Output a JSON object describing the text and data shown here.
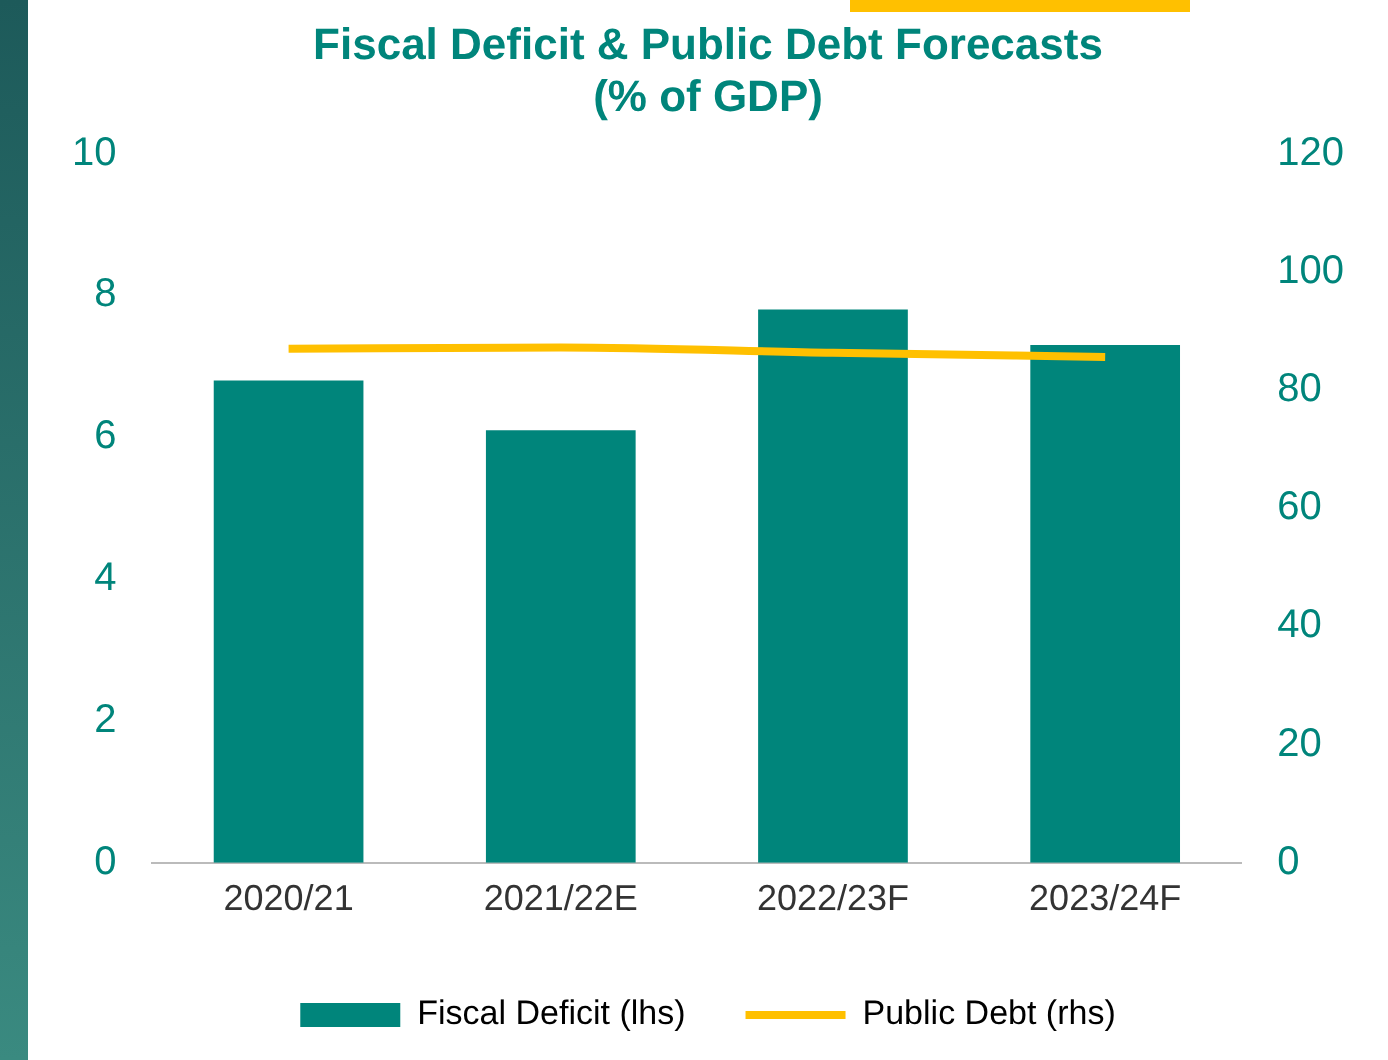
{
  "chart_data": {
    "type": "bar",
    "title": [
      "Fiscal Deficit & Public Debt Forecasts",
      "(% of GDP)"
    ],
    "categories": [
      "2020/21",
      "2021/22E",
      "2022/23F",
      "2023/24F"
    ],
    "series": [
      {
        "name": "Fiscal Deficit (lhs)",
        "color": "#00857b",
        "values": [
          6.8,
          6.1,
          7.8,
          7.3
        ]
      },
      {
        "name": "Public Debt (rhs)",
        "type": "line",
        "axis": "y2",
        "color": "#ffc000",
        "values": [
          87,
          87.2,
          86.3,
          85.6
        ]
      }
    ],
    "ylim": [
      0,
      10
    ],
    "yticks": [
      0,
      2,
      4,
      6,
      8,
      10
    ],
    "y2lim": [
      0,
      120
    ],
    "y2ticks": [
      0,
      20,
      40,
      60,
      80,
      100,
      120
    ],
    "grid": false,
    "legend": "bottom",
    "marker": "none"
  }
}
